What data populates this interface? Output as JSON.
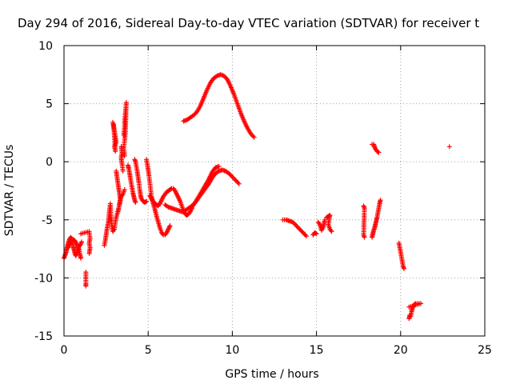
{
  "chart_data": {
    "type": "scatter",
    "title": "Day 294 of 2016, Sidereal Day-to-day VTEC variation (SDTVAR) for receiver t",
    "xlabel": "GPS time / hours",
    "ylabel": "SDTVAR / TECUs",
    "xlim": [
      0,
      25
    ],
    "ylim": [
      -15,
      10
    ],
    "xticks": [
      "0",
      "5",
      "10",
      "15",
      "20",
      "25"
    ],
    "yticks": [
      "10",
      "5",
      "0",
      "-5",
      "-10",
      "-15"
    ],
    "grid": true,
    "marker": "plus",
    "color": "#ff0000",
    "segments": [
      [
        [
          0.0,
          -8.3
        ],
        [
          0.05,
          -8.1
        ],
        [
          0.1,
          -7.9
        ],
        [
          0.15,
          -7.6
        ],
        [
          0.2,
          -7.3
        ],
        [
          0.25,
          -7.0
        ],
        [
          0.3,
          -6.8
        ],
        [
          0.35,
          -6.6
        ],
        [
          0.4,
          -6.5
        ],
        [
          0.45,
          -6.6
        ],
        [
          0.5,
          -6.9
        ],
        [
          0.55,
          -7.3
        ],
        [
          0.6,
          -7.6
        ],
        [
          0.65,
          -7.9
        ],
        [
          0.7,
          -8.1
        ],
        [
          0.75,
          -7.9
        ],
        [
          0.8,
          -7.6
        ],
        [
          0.85,
          -7.3
        ],
        [
          0.9,
          -7.6
        ],
        [
          0.95,
          -8.0
        ],
        [
          1.0,
          -8.3
        ]
      ],
      [
        [
          0.25,
          -7.4
        ],
        [
          0.35,
          -7.1
        ],
        [
          0.45,
          -6.9
        ],
        [
          0.55,
          -6.7
        ],
        [
          0.65,
          -6.8
        ],
        [
          0.75,
          -7.1
        ],
        [
          0.85,
          -7.4
        ],
        [
          0.95,
          -7.2
        ],
        [
          1.05,
          -6.9
        ]
      ],
      [
        [
          1.0,
          -6.2
        ],
        [
          1.5,
          -6.0
        ],
        [
          1.55,
          -6.6
        ],
        [
          1.5,
          -7.0
        ],
        [
          1.55,
          -7.4
        ],
        [
          1.5,
          -7.9
        ]
      ],
      [
        [
          1.3,
          -9.5
        ],
        [
          1.3,
          -10.5
        ],
        [
          1.3,
          -10.7
        ]
      ],
      [
        [
          2.4,
          -7.2
        ],
        [
          2.45,
          -6.8
        ],
        [
          2.5,
          -6.3
        ],
        [
          2.55,
          -5.8
        ],
        [
          2.6,
          -5.4
        ],
        [
          2.65,
          -5.0
        ],
        [
          2.7,
          -4.2
        ],
        [
          2.75,
          -3.6
        ],
        [
          2.8,
          -4.8
        ],
        [
          2.85,
          -5.6
        ],
        [
          2.9,
          -6.0
        ],
        [
          3.0,
          -5.8
        ],
        [
          3.05,
          -5.2
        ],
        [
          3.1,
          -4.8
        ],
        [
          3.2,
          -4.3
        ],
        [
          3.25,
          -4.0
        ],
        [
          3.3,
          -3.6
        ],
        [
          3.35,
          -3.2
        ],
        [
          3.4,
          -3.0
        ],
        [
          3.5,
          -2.8
        ],
        [
          3.6,
          -2.4
        ]
      ],
      [
        [
          2.9,
          3.4
        ],
        [
          2.95,
          3.0
        ],
        [
          3.0,
          2.6
        ],
        [
          3.05,
          2.2
        ],
        [
          3.1,
          1.7
        ],
        [
          3.0,
          1.3
        ],
        [
          3.05,
          0.9
        ],
        [
          2.95,
          3.2
        ]
      ],
      [
        [
          3.1,
          -0.8
        ],
        [
          3.15,
          -1.3
        ],
        [
          3.2,
          -1.8
        ],
        [
          3.25,
          -2.3
        ],
        [
          3.3,
          -2.8
        ],
        [
          3.35,
          -3.3
        ],
        [
          3.3,
          -3.7
        ]
      ],
      [
        [
          3.4,
          1.3
        ],
        [
          3.45,
          0.8
        ],
        [
          3.4,
          0.3
        ],
        [
          3.45,
          -0.2
        ],
        [
          3.5,
          -0.8
        ]
      ],
      [
        [
          3.55,
          2.3
        ],
        [
          3.6,
          3.0
        ],
        [
          3.6,
          3.6
        ],
        [
          3.65,
          4.2
        ],
        [
          3.7,
          5.1
        ],
        [
          3.65,
          2.6
        ],
        [
          3.6,
          1.8
        ],
        [
          3.55,
          1.2
        ],
        [
          3.6,
          0.5
        ]
      ],
      [
        [
          3.8,
          -0.3
        ],
        [
          3.85,
          -0.6
        ],
        [
          3.9,
          -1.0
        ],
        [
          3.95,
          -1.5
        ],
        [
          4.0,
          -1.9
        ],
        [
          4.05,
          -2.3
        ],
        [
          4.1,
          -2.7
        ],
        [
          4.15,
          -3.0
        ],
        [
          4.2,
          -3.3
        ],
        [
          4.25,
          -3.5
        ]
      ],
      [
        [
          4.2,
          0.2
        ],
        [
          4.25,
          0.0
        ],
        [
          4.3,
          -0.4
        ],
        [
          4.35,
          -0.8
        ],
        [
          4.4,
          -1.3
        ],
        [
          4.45,
          -1.8
        ],
        [
          4.5,
          -2.4
        ],
        [
          4.55,
          -2.9
        ],
        [
          4.6,
          -3.2
        ],
        [
          4.7,
          -3.4
        ],
        [
          4.8,
          -3.5
        ],
        [
          4.9,
          -3.4
        ]
      ],
      [
        [
          4.9,
          0.2
        ],
        [
          4.95,
          -0.2
        ],
        [
          5.0,
          -0.7
        ],
        [
          5.05,
          -1.2
        ],
        [
          5.1,
          -1.8
        ],
        [
          5.15,
          -2.4
        ],
        [
          5.2,
          -3.0
        ],
        [
          5.3,
          -3.6
        ],
        [
          5.4,
          -4.1
        ],
        [
          5.5,
          -4.7
        ],
        [
          5.6,
          -5.2
        ],
        [
          5.7,
          -5.7
        ],
        [
          5.8,
          -6.1
        ],
        [
          5.9,
          -6.3
        ],
        [
          6.0,
          -6.3
        ],
        [
          6.1,
          -6.1
        ],
        [
          6.2,
          -5.8
        ],
        [
          6.3,
          -5.5
        ]
      ],
      [
        [
          5.1,
          -2.9
        ],
        [
          5.2,
          -3.2
        ],
        [
          5.3,
          -3.4
        ],
        [
          5.4,
          -3.6
        ],
        [
          5.5,
          -3.7
        ],
        [
          5.6,
          -3.8
        ],
        [
          5.7,
          -3.6
        ],
        [
          5.8,
          -3.3
        ],
        [
          5.9,
          -3.0
        ],
        [
          6.0,
          -2.8
        ],
        [
          6.1,
          -2.6
        ],
        [
          6.2,
          -2.5
        ],
        [
          6.3,
          -2.4
        ],
        [
          6.4,
          -2.3
        ],
        [
          6.5,
          -2.3
        ],
        [
          6.6,
          -2.5
        ],
        [
          6.7,
          -2.8
        ],
        [
          6.8,
          -3.1
        ],
        [
          6.9,
          -3.4
        ],
        [
          7.0,
          -3.8
        ],
        [
          7.1,
          -4.2
        ],
        [
          7.2,
          -4.5
        ],
        [
          7.3,
          -4.6
        ],
        [
          7.4,
          -4.5
        ],
        [
          7.5,
          -4.3
        ],
        [
          7.6,
          -4.0
        ]
      ],
      [
        [
          6.0,
          -3.7
        ],
        [
          6.2,
          -3.9
        ],
        [
          6.4,
          -4.0
        ],
        [
          6.6,
          -4.1
        ],
        [
          6.8,
          -4.2
        ],
        [
          7.0,
          -4.3
        ],
        [
          7.2,
          -4.2
        ],
        [
          7.4,
          -4.0
        ],
        [
          7.6,
          -3.8
        ],
        [
          7.8,
          -3.5
        ],
        [
          8.0,
          -3.1
        ],
        [
          8.2,
          -2.7
        ],
        [
          8.4,
          -2.3
        ],
        [
          8.6,
          -1.9
        ],
        [
          8.8,
          -1.4
        ],
        [
          9.0,
          -1.0
        ],
        [
          9.2,
          -0.8
        ],
        [
          9.4,
          -0.7
        ],
        [
          9.6,
          -0.8
        ],
        [
          9.8,
          -1.0
        ],
        [
          10.0,
          -1.3
        ],
        [
          10.2,
          -1.6
        ],
        [
          10.4,
          -1.9
        ]
      ],
      [
        [
          7.6,
          -3.9
        ],
        [
          7.8,
          -3.5
        ],
        [
          8.0,
          -3.0
        ],
        [
          8.2,
          -2.5
        ],
        [
          8.4,
          -2.0
        ],
        [
          8.6,
          -1.5
        ],
        [
          8.8,
          -0.9
        ],
        [
          9.0,
          -0.5
        ],
        [
          9.2,
          -0.4
        ]
      ],
      [
        [
          7.1,
          3.5
        ],
        [
          7.3,
          3.6
        ],
        [
          7.5,
          3.8
        ],
        [
          7.7,
          4.0
        ],
        [
          7.9,
          4.3
        ],
        [
          8.1,
          4.8
        ],
        [
          8.3,
          5.5
        ],
        [
          8.5,
          6.2
        ],
        [
          8.7,
          6.8
        ],
        [
          8.9,
          7.2
        ],
        [
          9.1,
          7.4
        ],
        [
          9.3,
          7.5
        ],
        [
          9.5,
          7.4
        ],
        [
          9.7,
          7.1
        ],
        [
          9.9,
          6.5
        ],
        [
          10.1,
          5.8
        ],
        [
          10.3,
          5.0
        ],
        [
          10.5,
          4.2
        ],
        [
          10.7,
          3.5
        ],
        [
          10.9,
          2.9
        ],
        [
          11.1,
          2.4
        ],
        [
          11.3,
          2.1
        ]
      ],
      [
        [
          13.0,
          -5.0
        ],
        [
          13.2,
          -5.0
        ],
        [
          13.4,
          -5.1
        ],
        [
          13.6,
          -5.2
        ],
        [
          13.8,
          -5.5
        ],
        [
          14.0,
          -5.8
        ],
        [
          14.2,
          -6.1
        ],
        [
          14.4,
          -6.4
        ]
      ],
      [
        [
          14.8,
          -6.3
        ],
        [
          14.9,
          -6.1
        ],
        [
          15.0,
          -6.2
        ]
      ],
      [
        [
          15.1,
          -5.2
        ],
        [
          15.2,
          -5.4
        ],
        [
          15.3,
          -5.9
        ],
        [
          15.4,
          -5.6
        ],
        [
          15.5,
          -5.0
        ]
      ],
      [
        [
          15.6,
          -4.8
        ],
        [
          15.7,
          -4.7
        ],
        [
          15.8,
          -4.6
        ],
        [
          15.7,
          -5.4
        ],
        [
          15.8,
          -5.8
        ],
        [
          15.9,
          -6.0
        ]
      ],
      [
        [
          17.8,
          -3.8
        ],
        [
          17.85,
          -4.0
        ],
        [
          17.8,
          -6.3
        ],
        [
          17.85,
          -6.5
        ]
      ],
      [
        [
          18.3,
          1.5
        ],
        [
          18.4,
          1.5
        ],
        [
          18.45,
          1.3
        ],
        [
          18.5,
          1.1
        ],
        [
          18.55,
          1.0
        ],
        [
          18.6,
          0.9
        ],
        [
          18.7,
          0.8
        ]
      ],
      [
        [
          18.3,
          -6.5
        ],
        [
          18.35,
          -6.2
        ],
        [
          18.4,
          -5.9
        ],
        [
          18.45,
          -5.7
        ],
        [
          18.5,
          -5.4
        ],
        [
          18.55,
          -5.1
        ],
        [
          18.6,
          -4.8
        ],
        [
          18.65,
          -4.4
        ],
        [
          18.7,
          -4.0
        ],
        [
          18.75,
          -3.6
        ],
        [
          18.8,
          -3.3
        ]
      ],
      [
        [
          19.9,
          -7.0
        ],
        [
          19.95,
          -7.4
        ],
        [
          20.0,
          -7.8
        ],
        [
          20.05,
          -8.2
        ],
        [
          20.1,
          -8.6
        ],
        [
          20.15,
          -9.0
        ],
        [
          20.2,
          -9.2
        ]
      ],
      [
        [
          20.5,
          -13.5
        ],
        [
          20.55,
          -13.2
        ],
        [
          20.6,
          -13.3
        ],
        [
          20.65,
          -12.9
        ],
        [
          20.7,
          -12.6
        ],
        [
          20.75,
          -12.4
        ],
        [
          20.8,
          -12.3
        ],
        [
          20.9,
          -12.2
        ],
        [
          21.0,
          -12.2
        ],
        [
          21.2,
          -12.2
        ],
        [
          20.5,
          -12.5
        ]
      ],
      [
        [
          22.9,
          1.3
        ]
      ]
    ]
  }
}
